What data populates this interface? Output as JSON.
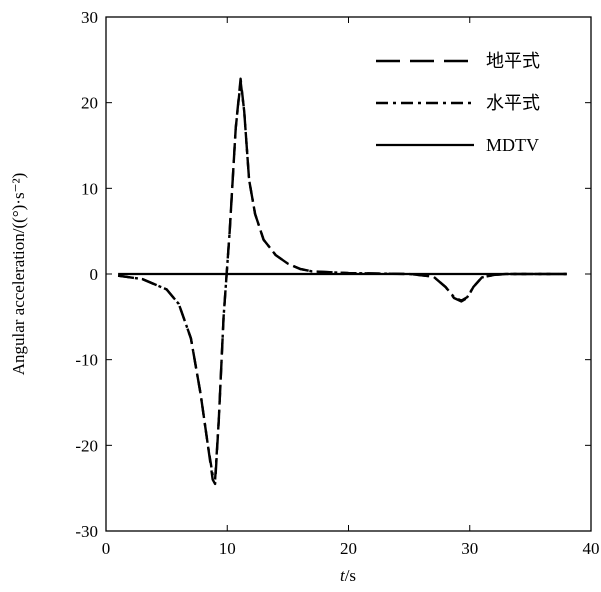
{
  "chart_data": {
    "type": "line",
    "xlabel_italic": "t",
    "xlabel_unit": "/s",
    "ylabel": "Angular acceleration/((°)·s⁻²)",
    "xlim": [
      0,
      40
    ],
    "ylim": [
      -30,
      30
    ],
    "xticks": [
      0,
      10,
      20,
      30,
      40
    ],
    "yticks": [
      -30,
      -20,
      -10,
      0,
      10,
      20,
      30
    ],
    "grid": false,
    "legend_position": "top-right",
    "series": [
      {
        "name": "地平式",
        "style": "dashed",
        "x": [
          1,
          3,
          5,
          6,
          7,
          7.8,
          8.4,
          8.8,
          9.0,
          9.3,
          9.7,
          10.2,
          10.7,
          11.1,
          11.4,
          11.8,
          12.3,
          13,
          14,
          15,
          16,
          17,
          20,
          25,
          27,
          28,
          28.7,
          29.3,
          29.8,
          30.3,
          31,
          32,
          33,
          35,
          38
        ],
        "y": [
          -0.2,
          -0.6,
          -1.8,
          -3.5,
          -7.5,
          -14,
          -20,
          -24,
          -24.5,
          -17,
          -5,
          5,
          17,
          22.8,
          19,
          11,
          7,
          4,
          2.2,
          1.2,
          0.6,
          0.3,
          0.1,
          0,
          -0.3,
          -1.5,
          -2.8,
          -3.2,
          -2.8,
          -1.5,
          -0.4,
          -0.1,
          0,
          0,
          0
        ]
      },
      {
        "name": "水平式",
        "style": "dashdot",
        "x": [
          1,
          3,
          5,
          6,
          7,
          7.8,
          8.4,
          8.8,
          9.0,
          9.3,
          9.7,
          10.2,
          10.7,
          11.1,
          11.4,
          11.8,
          12.3,
          13,
          14,
          15,
          16,
          17,
          20,
          25,
          27,
          28,
          28.7,
          29.3,
          29.8,
          30.3,
          31,
          32,
          33,
          35,
          38
        ],
        "y": [
          -0.2,
          -0.6,
          -1.8,
          -3.5,
          -7.5,
          -14,
          -20,
          -23.5,
          -24,
          -17,
          -5,
          5,
          17,
          22.5,
          19,
          11,
          7,
          4,
          2.2,
          1.2,
          0.6,
          0.3,
          0.1,
          0,
          -0.3,
          -1.5,
          -2.7,
          -3.1,
          -2.7,
          -1.5,
          -0.4,
          -0.1,
          0,
          0,
          0
        ]
      },
      {
        "name": "MDTV",
        "style": "solid",
        "x": [
          1,
          38
        ],
        "y": [
          0,
          0
        ]
      }
    ]
  }
}
